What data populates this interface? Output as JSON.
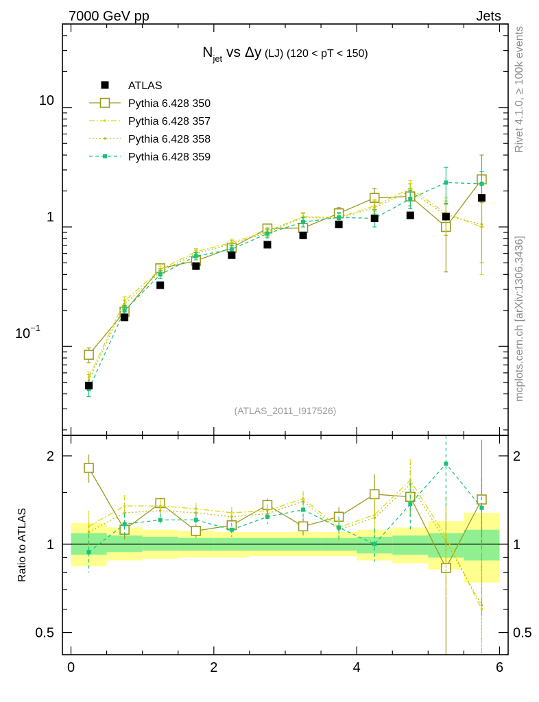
{
  "header": {
    "energy_label": "7000 GeV pp",
    "process_label": "Jets"
  },
  "side": {
    "rivet_label": "Rivet 4.1.0, ≥ 100k events",
    "source_label": "mcplots.cern.ch [arXiv:1306.3436]"
  },
  "colors": {
    "atlas": "#000000",
    "p350": "#9a9a20",
    "p357": "#dada10",
    "p358": "#bebe1a",
    "p359": "#18c27a",
    "band_outer": "#ffff90",
    "band_inner": "#90f090"
  },
  "chart_data": {
    "type": "scatter",
    "title": {
      "main": "N",
      "main_sub": "jet",
      "vs": " vs ",
      "var": "Δy",
      "qual": " (LJ)  (120 < pT < 150)"
    },
    "analysis_label": "(ATLAS_2011_I917526)",
    "x": [
      0.25,
      0.75,
      1.25,
      1.75,
      2.25,
      2.75,
      3.25,
      3.75,
      4.25,
      4.75,
      5.25,
      5.75
    ],
    "xlim": [
      -0.12,
      6.12
    ],
    "xticks": [
      0,
      2,
      4,
      6
    ],
    "xtick_labels": [
      "0",
      "2",
      "4",
      "6"
    ],
    "bin_edges": [
      0,
      0.5,
      1.0,
      1.5,
      2.0,
      2.5,
      3.0,
      3.5,
      4.0,
      4.5,
      5.0,
      5.5,
      6.0
    ],
    "ylabel": "",
    "ylim_main": [
      0.018,
      50
    ],
    "yticks_main": [
      0.1,
      1,
      10
    ],
    "ytick_labels_main": {
      "base_low": "10",
      "exp_low": "−1",
      "one": "1",
      "ten": "10"
    },
    "ratio_ylabel": "Ratio to ATLAS",
    "ylim_ratio": [
      0.42,
      2.35
    ],
    "yticks_ratio": [
      0.5,
      1,
      2
    ],
    "ytick_labels_ratio": [
      "0.5",
      "1",
      "2"
    ],
    "series": [
      {
        "name": "ATLAS",
        "values": [
          0.047,
          0.175,
          0.325,
          0.47,
          0.58,
          0.71,
          0.85,
          1.05,
          1.18,
          1.25,
          1.22,
          1.75
        ],
        "errors": [
          0.003,
          0.008,
          0.01,
          0.015,
          0.02,
          0.02,
          0.03,
          0.03,
          0.04,
          0.05,
          0.05,
          0.08
        ]
      },
      {
        "name": "Pythia 6.428 350",
        "values": [
          0.085,
          0.195,
          0.45,
          0.52,
          0.67,
          0.97,
          0.98,
          1.3,
          1.75,
          1.8,
          1.0,
          2.5
        ],
        "errors": [
          0.012,
          0.02,
          0.03,
          0.04,
          0.06,
          0.08,
          0.1,
          0.15,
          0.35,
          0.3,
          0.58,
          1.5
        ],
        "ratio": [
          1.82,
          1.12,
          1.38,
          1.11,
          1.16,
          1.36,
          1.15,
          1.24,
          1.48,
          1.45,
          0.83,
          1.42
        ],
        "ratio_errors": [
          0.2,
          0.08,
          0.06,
          0.06,
          0.07,
          0.07,
          0.08,
          0.1,
          0.25,
          0.2,
          0.5,
          0.85
        ]
      },
      {
        "name": "Pythia 6.428 357",
        "values": [
          0.055,
          0.24,
          0.44,
          0.62,
          0.74,
          0.92,
          1.22,
          1.2,
          1.5,
          2.1,
          1.3,
          1.0
        ],
        "errors": [
          0.006,
          0.02,
          0.03,
          0.04,
          0.05,
          0.07,
          0.1,
          0.12,
          0.2,
          0.35,
          0.45,
          0.6
        ],
        "ratio": [
          1.15,
          1.35,
          1.35,
          1.32,
          1.28,
          1.3,
          1.43,
          1.14,
          1.26,
          1.65,
          1.06,
          0.6
        ],
        "ratio_errors": [
          0.15,
          0.12,
          0.07,
          0.06,
          0.06,
          0.07,
          0.09,
          0.1,
          0.18,
          0.3,
          0.4,
          0.45
        ]
      },
      {
        "name": "Pythia 6.428 358",
        "values": [
          0.052,
          0.225,
          0.42,
          0.6,
          0.72,
          0.9,
          1.2,
          1.18,
          1.45,
          2.0,
          1.25,
          1.05
        ],
        "errors": [
          0.006,
          0.02,
          0.03,
          0.04,
          0.05,
          0.07,
          0.1,
          0.12,
          0.2,
          0.3,
          0.4,
          0.55
        ],
        "ratio": [
          1.1,
          1.28,
          1.3,
          1.28,
          1.24,
          1.27,
          1.4,
          1.12,
          1.23,
          1.6,
          1.02,
          0.62
        ],
        "ratio_errors": [
          0.14,
          0.1,
          0.06,
          0.06,
          0.06,
          0.07,
          0.09,
          0.1,
          0.17,
          0.28,
          0.38,
          0.45
        ]
      },
      {
        "name": "Pythia 6.428 359",
        "values": [
          0.044,
          0.2,
          0.4,
          0.57,
          0.65,
          0.88,
          1.1,
          1.2,
          1.18,
          1.72,
          2.35,
          2.3
        ],
        "errors": [
          0.006,
          0.02,
          0.03,
          0.04,
          0.05,
          0.07,
          0.1,
          0.12,
          0.18,
          0.3,
          0.8,
          0.6
        ],
        "ratio": [
          0.94,
          1.17,
          1.21,
          1.21,
          1.12,
          1.24,
          1.31,
          1.14,
          1.0,
          1.37,
          1.88,
          1.33
        ],
        "ratio_errors": [
          0.14,
          0.1,
          0.06,
          0.06,
          0.06,
          0.07,
          0.09,
          0.1,
          0.13,
          0.25,
          0.55,
          0.35
        ]
      }
    ],
    "uncertainty_band": {
      "outer_lo": [
        0.84,
        0.88,
        0.89,
        0.9,
        0.9,
        0.91,
        0.91,
        0.91,
        0.88,
        0.86,
        0.82,
        0.74
      ],
      "outer_hi": [
        1.18,
        1.14,
        1.12,
        1.11,
        1.1,
        1.1,
        1.1,
        1.1,
        1.12,
        1.14,
        1.2,
        1.28
      ],
      "inner_lo": [
        0.92,
        0.94,
        0.95,
        0.95,
        0.95,
        0.95,
        0.95,
        0.95,
        0.93,
        0.92,
        0.9,
        0.88
      ],
      "inner_hi": [
        1.09,
        1.07,
        1.06,
        1.05,
        1.05,
        1.05,
        1.05,
        1.05,
        1.06,
        1.07,
        1.09,
        1.12
      ]
    }
  }
}
